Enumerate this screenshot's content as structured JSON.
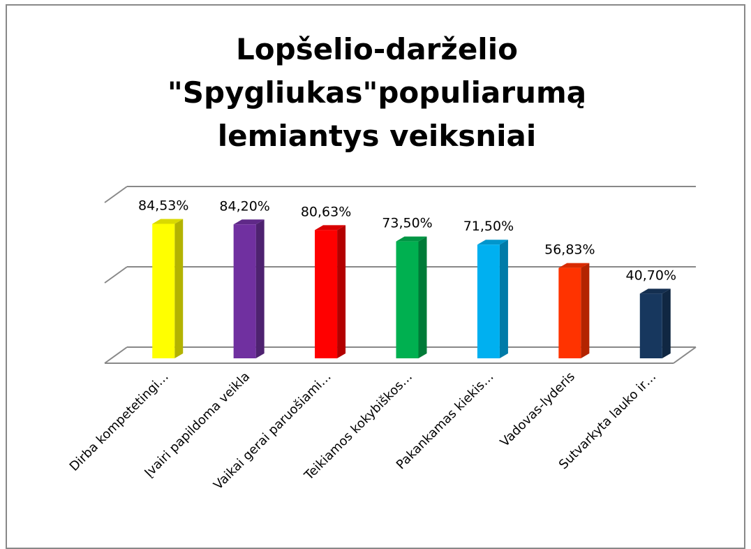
{
  "chart_data": {
    "type": "bar3d",
    "title": "Lopšelio-darželio \"Spygliukas\"populiarumą lemiantys veiksniai",
    "categories": [
      "Dirba kompetetingi…",
      "Įvairi papildoma veikla",
      "Vaikai gerai paruošiami…",
      "Teikiamos kokybiškos…",
      "Pakankamas kiekis…",
      "Vadovas-lyderis",
      "Sutvarkyta lauko ir…"
    ],
    "values": [
      84.53,
      84.2,
      80.63,
      73.5,
      71.5,
      56.83,
      40.7
    ],
    "value_labels": [
      "84,53%",
      "84,20%",
      "80,63%",
      "73,50%",
      "71,50%",
      "56,83%",
      "40,70%"
    ],
    "colors": [
      "#ffff00",
      "#7030a0",
      "#ff0000",
      "#00b050",
      "#00b0f0",
      "#ff3300",
      "#17375e"
    ],
    "ylim": [
      0,
      100
    ],
    "yticks": [
      0,
      50,
      100
    ],
    "grid": true
  }
}
